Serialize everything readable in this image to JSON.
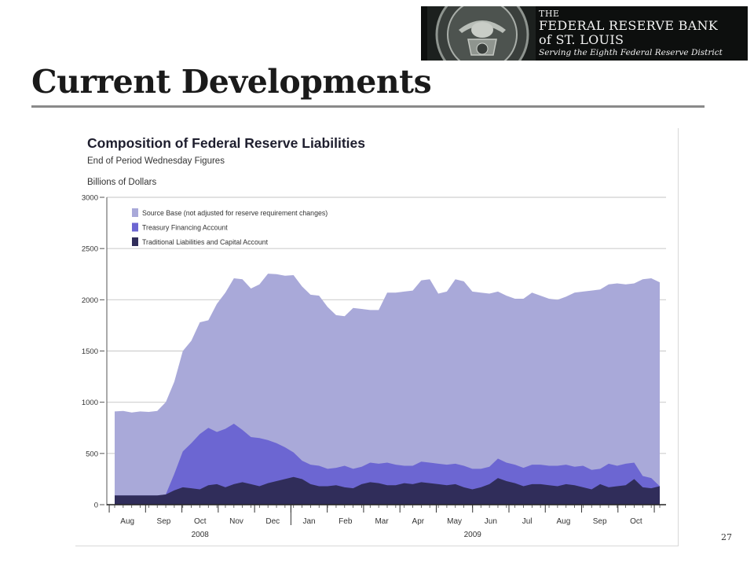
{
  "header": {
    "title": "Current Developments",
    "page_number": "27"
  },
  "logo": {
    "the": "THE",
    "line1": "FEDERAL RESERVE BANK",
    "line2": "of ST. LOUIS",
    "tagline": "Serving the Eighth Federal Reserve District"
  },
  "colors": {
    "source_base": "#a9a9d9",
    "treasury": "#6c66d2",
    "traditional": "#302d5a",
    "grid": "#cfcfcf",
    "logo_bg": "#0d0f0e"
  },
  "chart_data": {
    "type": "area",
    "stacking": "overlapping",
    "title": "Composition of Federal Reserve Liabilities",
    "subtitle": "End of Period Wednesday Figures",
    "ylabel": "Billions of Dollars",
    "ylim": [
      0,
      3000
    ],
    "yticks": [
      0,
      500,
      1000,
      1500,
      2000,
      2500,
      3000
    ],
    "grid": true,
    "legend_position": "top-left",
    "month_labels": [
      "Aug",
      "Sep",
      "Oct",
      "Nov",
      "Dec",
      "Jan",
      "Feb",
      "Mar",
      "Apr",
      "May",
      "Jun",
      "Jul",
      "Aug",
      "Sep",
      "Oct"
    ],
    "year_labels": [
      {
        "label": "2008",
        "month_index": 2
      },
      {
        "label": "2009",
        "month_index": 9.5
      }
    ],
    "x_start": "2008-08",
    "x_end": "2009-10",
    "series": [
      {
        "name": "Source Base (not adjusted for reserve requirement changes)",
        "color": "#a9a9d9",
        "values": [
          910,
          915,
          900,
          910,
          905,
          915,
          1000,
          1200,
          1500,
          1600,
          1780,
          1800,
          1960,
          2070,
          2210,
          2200,
          2110,
          2150,
          2255,
          2250,
          2235,
          2240,
          2130,
          2050,
          2040,
          1930,
          1850,
          1840,
          1920,
          1910,
          1900,
          1900,
          2070,
          2070,
          2080,
          2090,
          2190,
          2200,
          2060,
          2080,
          2200,
          2180,
          2080,
          2070,
          2060,
          2080,
          2040,
          2010,
          2010,
          2070,
          2040,
          2010,
          2000,
          2030,
          2070,
          2080,
          2090,
          2100,
          2150,
          2160,
          2150,
          2160,
          2200,
          2210,
          2170
        ]
      },
      {
        "name": "Treasury Financing Account",
        "color": "#6c66d2",
        "values": [
          90,
          90,
          90,
          90,
          90,
          90,
          100,
          300,
          520,
          600,
          690,
          750,
          710,
          740,
          790,
          730,
          660,
          650,
          630,
          600,
          560,
          510,
          430,
          390,
          380,
          350,
          360,
          380,
          350,
          370,
          410,
          400,
          410,
          390,
          380,
          380,
          420,
          410,
          400,
          390,
          400,
          380,
          350,
          350,
          370,
          450,
          410,
          390,
          360,
          390,
          390,
          380,
          380,
          390,
          370,
          380,
          340,
          350,
          400,
          380,
          400,
          410,
          280,
          260,
          180
        ]
      },
      {
        "name": "Traditional Liabilities and Capital Account",
        "color": "#302d5a",
        "values": [
          90,
          90,
          90,
          90,
          90,
          90,
          100,
          140,
          170,
          160,
          150,
          190,
          200,
          170,
          200,
          220,
          200,
          180,
          210,
          230,
          250,
          270,
          250,
          200,
          180,
          180,
          190,
          170,
          160,
          200,
          220,
          210,
          190,
          190,
          210,
          200,
          220,
          210,
          200,
          190,
          200,
          170,
          150,
          170,
          200,
          260,
          230,
          210,
          180,
          200,
          200,
          190,
          180,
          200,
          190,
          170,
          150,
          200,
          170,
          180,
          190,
          250,
          170,
          160,
          180
        ]
      }
    ]
  }
}
